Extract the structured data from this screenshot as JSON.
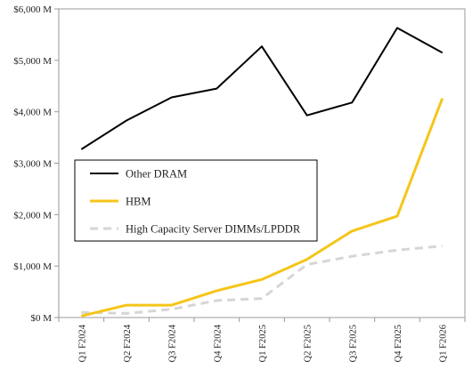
{
  "chart_data": {
    "type": "line",
    "title": "",
    "xlabel": "",
    "ylabel": "",
    "categories": [
      "Q1 F2024",
      "Q2 F2024",
      "Q3 F2024",
      "Q4 F2024",
      "Q1 F2025",
      "Q2 F2025",
      "Q3 F2025",
      "Q4 F2025",
      "Q1 F2026"
    ],
    "ylim": [
      0,
      6000
    ],
    "yticks": [
      0,
      1000,
      2000,
      3000,
      4000,
      5000,
      6000
    ],
    "ytick_labels": [
      "$0 M",
      "$1,000 M",
      "$2,000 M",
      "$3,000 M",
      "$4,000 M",
      "$5,000 M",
      "$6,000 M"
    ],
    "grid": false,
    "legend_position": "center-left",
    "series": [
      {
        "name": "Other DRAM",
        "color": "#000000",
        "style": "solid",
        "values": [
          3270,
          3830,
          4280,
          4450,
          5270,
          3930,
          4180,
          5630,
          5150
        ]
      },
      {
        "name": "HBM",
        "color": "#F5C518",
        "style": "solid",
        "values": [
          30,
          240,
          240,
          520,
          740,
          1130,
          1680,
          1970,
          4260
        ]
      },
      {
        "name": "High Capacity Server DIMMs/LPDDR",
        "color": "#D6D6D6",
        "style": "dashed",
        "values": [
          100,
          80,
          160,
          330,
          370,
          1030,
          1190,
          1310,
          1390
        ]
      }
    ]
  }
}
